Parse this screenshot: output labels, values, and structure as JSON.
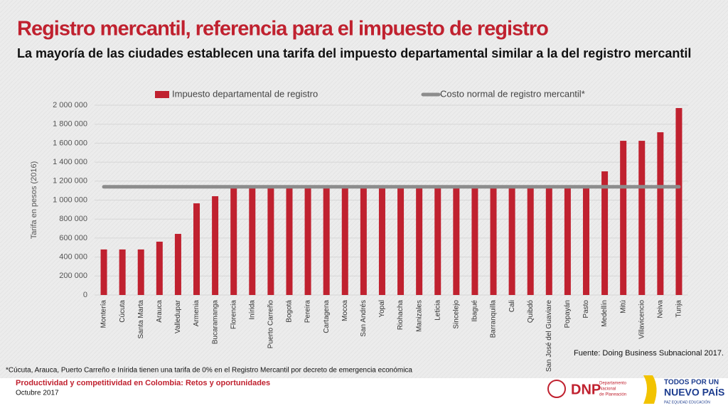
{
  "header": {
    "title": "Registro mercantil, referencia para el impuesto de registro",
    "subtitle": "La mayoría de las ciudades establecen una tarifa del impuesto departamental similar a la del registro mercantil"
  },
  "chart_data": {
    "type": "bar",
    "ylabel": "Tarifa en pesos (2016)",
    "categories": [
      "Montería",
      "Cúcuta",
      "Santa Marta",
      "Arauca",
      "Valledupar",
      "Armenia",
      "Bucaramanga",
      "Florencia",
      "Inírida",
      "Puerto Carreño",
      "Bogotá",
      "Pereira",
      "Cartagena",
      "Mocoa",
      "San Andrés",
      "Yopal",
      "Riohacha",
      "Manizales",
      "Leticia",
      "Sincelejo",
      "Ibagué",
      "Barranquilla",
      "Cali",
      "Quibdó",
      "San José del Guaviare",
      "Popayán",
      "Pasto",
      "Medellín",
      "Mitú",
      "Villavicencio",
      "Neiva",
      "Tunja"
    ],
    "series": [
      {
        "name": "Impuesto departamental de registro",
        "type": "bar",
        "color": "#c0212f",
        "values": [
          480000,
          480000,
          480000,
          562000,
          644000,
          966000,
          1041000,
          1130000,
          1130000,
          1130000,
          1130000,
          1130000,
          1130000,
          1130000,
          1130000,
          1130000,
          1130000,
          1130000,
          1130000,
          1130000,
          1130000,
          1130000,
          1130000,
          1130000,
          1130000,
          1130000,
          1130000,
          1303000,
          1625000,
          1625000,
          1715000,
          1970000
        ]
      },
      {
        "name": "Costo normal de registro mercantil*",
        "type": "line",
        "color": "#8c8c8c",
        "values": [
          1140000,
          1140000,
          1140000,
          1140000,
          1140000,
          1140000,
          1140000,
          1140000,
          1140000,
          1140000,
          1140000,
          1140000,
          1140000,
          1140000,
          1140000,
          1140000,
          1140000,
          1140000,
          1140000,
          1140000,
          1140000,
          1140000,
          1140000,
          1140000,
          1140000,
          1140000,
          1140000,
          1140000,
          1140000,
          1140000,
          1140000,
          1140000
        ]
      }
    ],
    "ylim": [
      0,
      2000000
    ],
    "yticks": [
      0,
      {
        "value": 200000,
        "label": "200 000"
      },
      {
        "value": 400000,
        "label": "400 000"
      },
      {
        "value": 600000,
        "label": "600 000"
      },
      {
        "value": 800000,
        "label": "800 000"
      },
      {
        "value": 1000000,
        "label": "1 000 000"
      },
      {
        "value": 1200000,
        "label": "1 200 000"
      },
      {
        "value": 1400000,
        "label": "1 400 000"
      },
      {
        "value": 1600000,
        "label": "1 600 000"
      },
      {
        "value": 1800000,
        "label": "1 800 000"
      },
      {
        "value": 2000000,
        "label": "2 000 000"
      }
    ],
    "grid": true,
    "legend": "top"
  },
  "source": "Fuente: Doing Business Subnacional 2017.",
  "footnote": "*Cúcuta, Arauca, Puerto Carreño e Inírida tienen una tarifa de 0% en el Registro Mercantil por decreto de emergencia económica",
  "footer": {
    "line1": "Productividad y competitividad en Colombia: Retos y oportunidades",
    "line2": "Octubre 2017",
    "dnp": "DNP",
    "dnp_sub1": "Departamento",
    "dnp_sub2": "Nacional",
    "dnp_sub3": "de Planeación",
    "slogan1": "TODOS POR UN",
    "slogan2": "NUEVO PAÍS",
    "slogan3": "PAZ  EQUIDAD  EDUCACIÓN"
  }
}
